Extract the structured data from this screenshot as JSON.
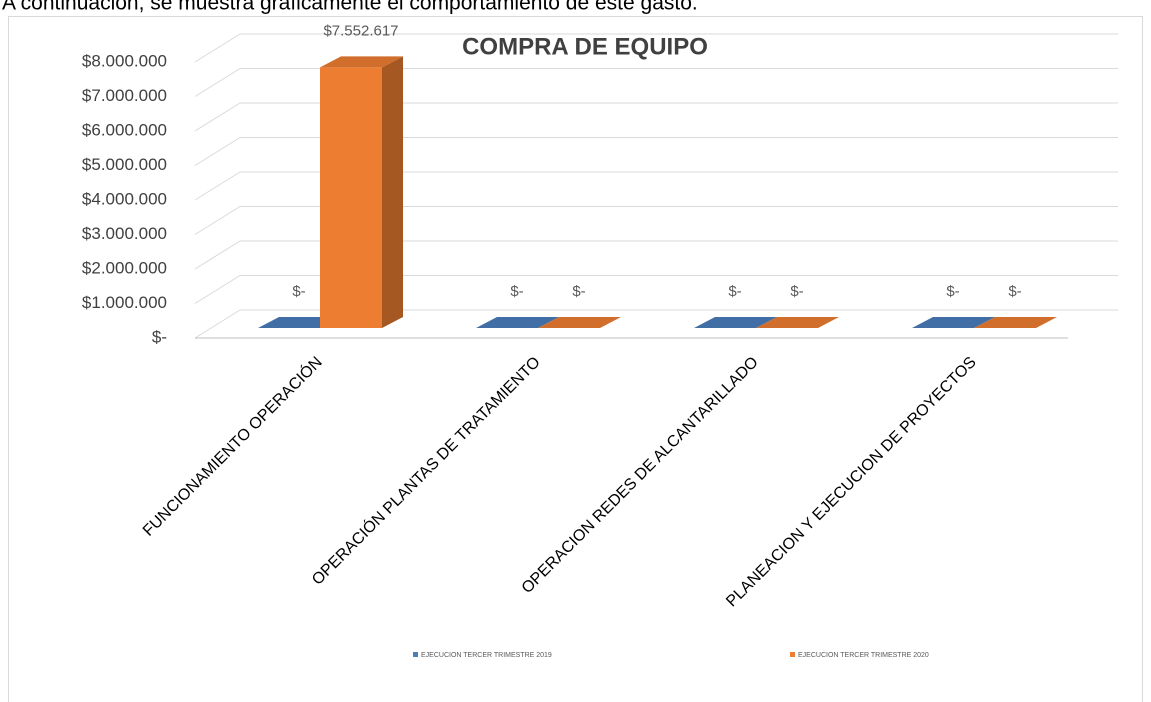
{
  "intro_text": "A continuación, se muestra gráficamente el comportamiento de este gasto.",
  "chart_data": {
    "type": "bar3d",
    "title": "COMPRA DE EQUIPO",
    "categories": [
      "FUNCIONAMIENTO OPERACIÓN",
      "OPERACIÓN PLANTAS DE TRATAMIENTO",
      "OPERACION REDES DE ALCANTARILLADO",
      "PLANEACION Y EJECUCION DE PROYECTOS"
    ],
    "series": [
      {
        "name": "EJECUCION TERCER TRIMESTRE 2019",
        "color": "#4a7ebb",
        "values": [
          0,
          0,
          0,
          0
        ],
        "value_labels": [
          "$-",
          "$-",
          "$-",
          "$-"
        ]
      },
      {
        "name": "EJECUCION TERCER TRIMESTRE 2020",
        "color": "#ed7d31",
        "values": [
          7552617,
          0,
          0,
          0
        ],
        "value_labels": [
          "$7.552.617",
          "$-",
          "$-",
          "$-"
        ]
      }
    ],
    "ylim": [
      0,
      8000000
    ],
    "yticks": [
      {
        "value": 0,
        "label": "$-"
      },
      {
        "value": 1000000,
        "label": "$1.000.000"
      },
      {
        "value": 2000000,
        "label": "$2.000.000"
      },
      {
        "value": 3000000,
        "label": "$3.000.000"
      },
      {
        "value": 4000000,
        "label": "$4.000.000"
      },
      {
        "value": 5000000,
        "label": "$5.000.000"
      },
      {
        "value": 6000000,
        "label": "$6.000.000"
      },
      {
        "value": 7000000,
        "label": "$7.000.000"
      },
      {
        "value": 8000000,
        "label": "$8.000.000"
      }
    ],
    "grid": true,
    "legend": "bottom"
  }
}
